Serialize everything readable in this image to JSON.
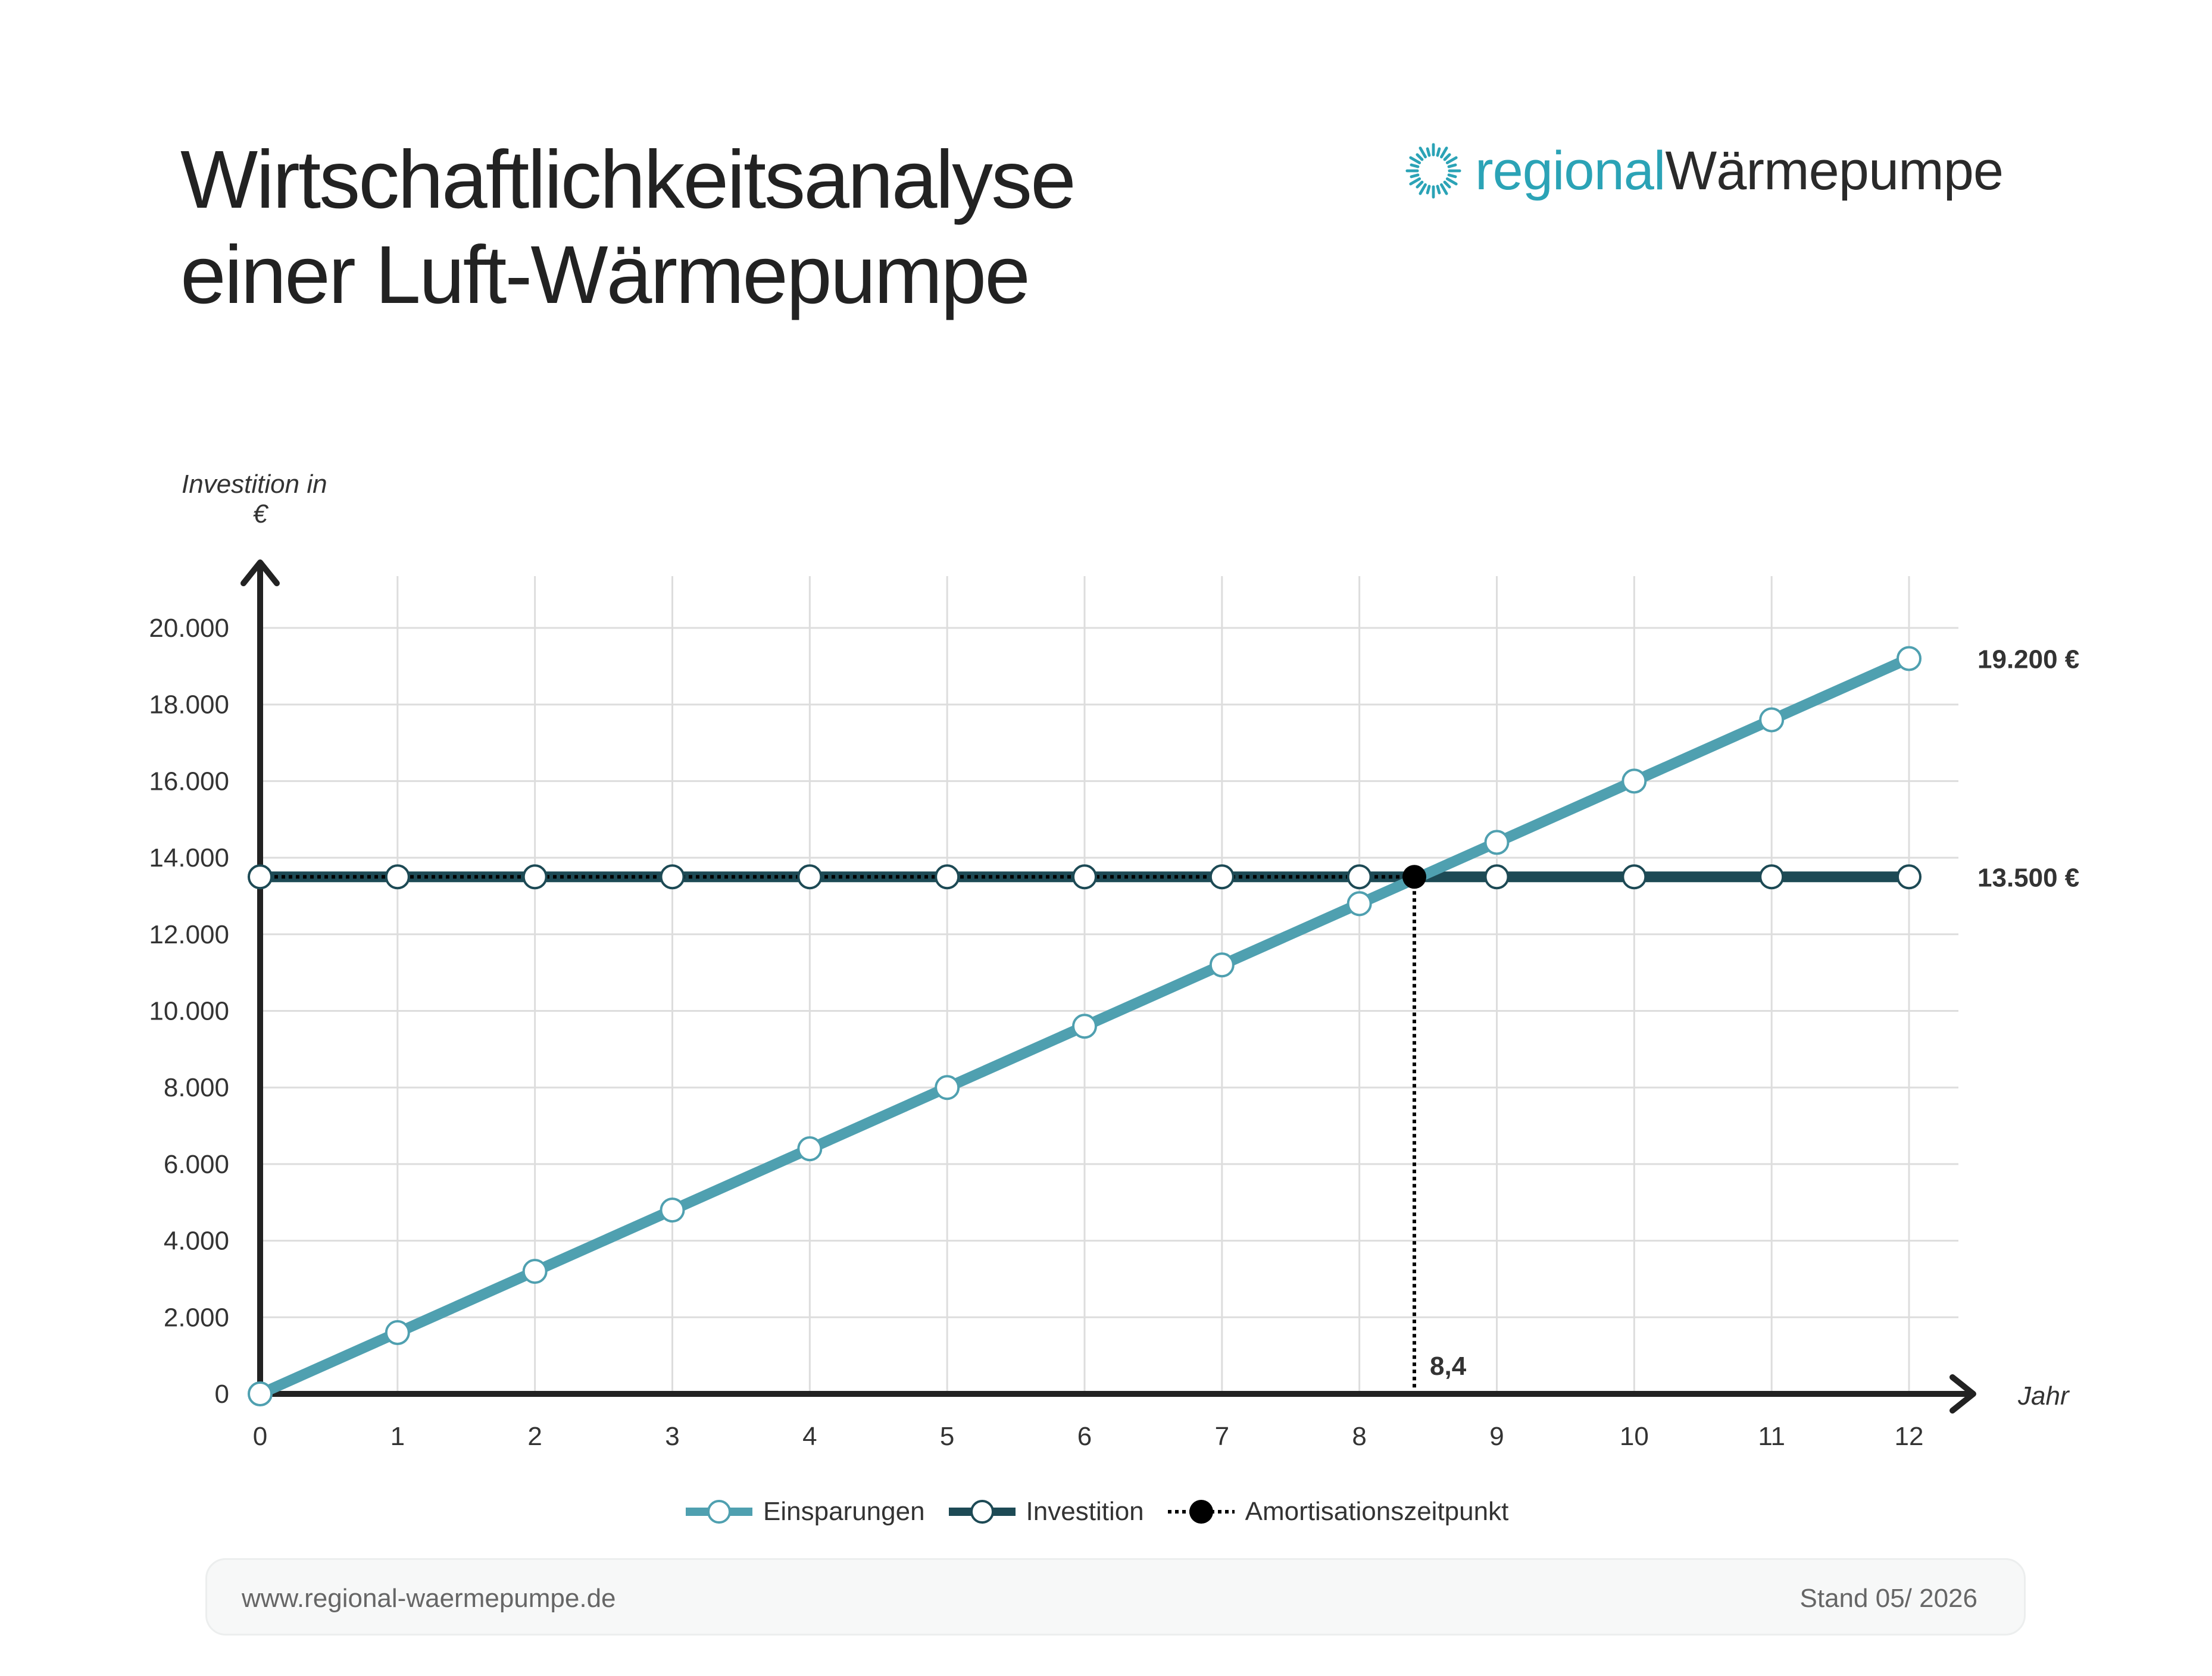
{
  "page": {
    "title_line1": "Wirtschaftlichkeitsanalyse",
    "title_line2": "einer Luft-Wärmepumpe",
    "logo_part1": "regional",
    "logo_part2": "Wärmepumpe",
    "logo_icon": "sun-burst-icon",
    "footer_url": "www.regional-waermepumpe.de",
    "footer_date": "Stand 05/ 2026"
  },
  "colors": {
    "einsparungen": "#4fa0b0",
    "investition": "#1d4a55",
    "amortisation": "#000000",
    "logo_accent": "#2ba3b6",
    "grid": "#dddddd",
    "axis": "#222222"
  },
  "chart_data": {
    "type": "line",
    "ylabel_line1": "Investition in",
    "ylabel_line2": "€",
    "xlabel": "Jahr",
    "x": [
      0,
      1,
      2,
      3,
      4,
      5,
      6,
      7,
      8,
      9,
      10,
      11,
      12
    ],
    "xlim": [
      0,
      12
    ],
    "ylim": [
      0,
      20000
    ],
    "yticks": [
      0,
      2000,
      4000,
      6000,
      8000,
      10000,
      12000,
      14000,
      16000,
      18000,
      20000
    ],
    "ytick_labels": [
      "0",
      "2.000",
      "4.000",
      "6.000",
      "8.000",
      "10.000",
      "12.000",
      "14.000",
      "16.000",
      "18.000",
      "20.000"
    ],
    "xtick_labels": [
      "0",
      "1",
      "2",
      "3",
      "4",
      "5",
      "6",
      "7",
      "8",
      "9",
      "10",
      "11",
      "12"
    ],
    "grid": true,
    "legend_position": "bottom-center",
    "series": [
      {
        "name": "Einsparungen",
        "values": [
          0,
          1600,
          3200,
          4800,
          6400,
          8000,
          9600,
          11200,
          12800,
          14400,
          16000,
          17600,
          19200
        ],
        "end_label": "19.200 €"
      },
      {
        "name": "Investition",
        "values": [
          13500,
          13500,
          13500,
          13500,
          13500,
          13500,
          13500,
          13500,
          13500,
          13500,
          13500,
          13500,
          13500
        ],
        "end_label": "13.500 €"
      }
    ],
    "amortisation": {
      "name": "Amortisationszeitpunkt",
      "x": 8.4,
      "y": 13500,
      "label": "8,4"
    }
  }
}
